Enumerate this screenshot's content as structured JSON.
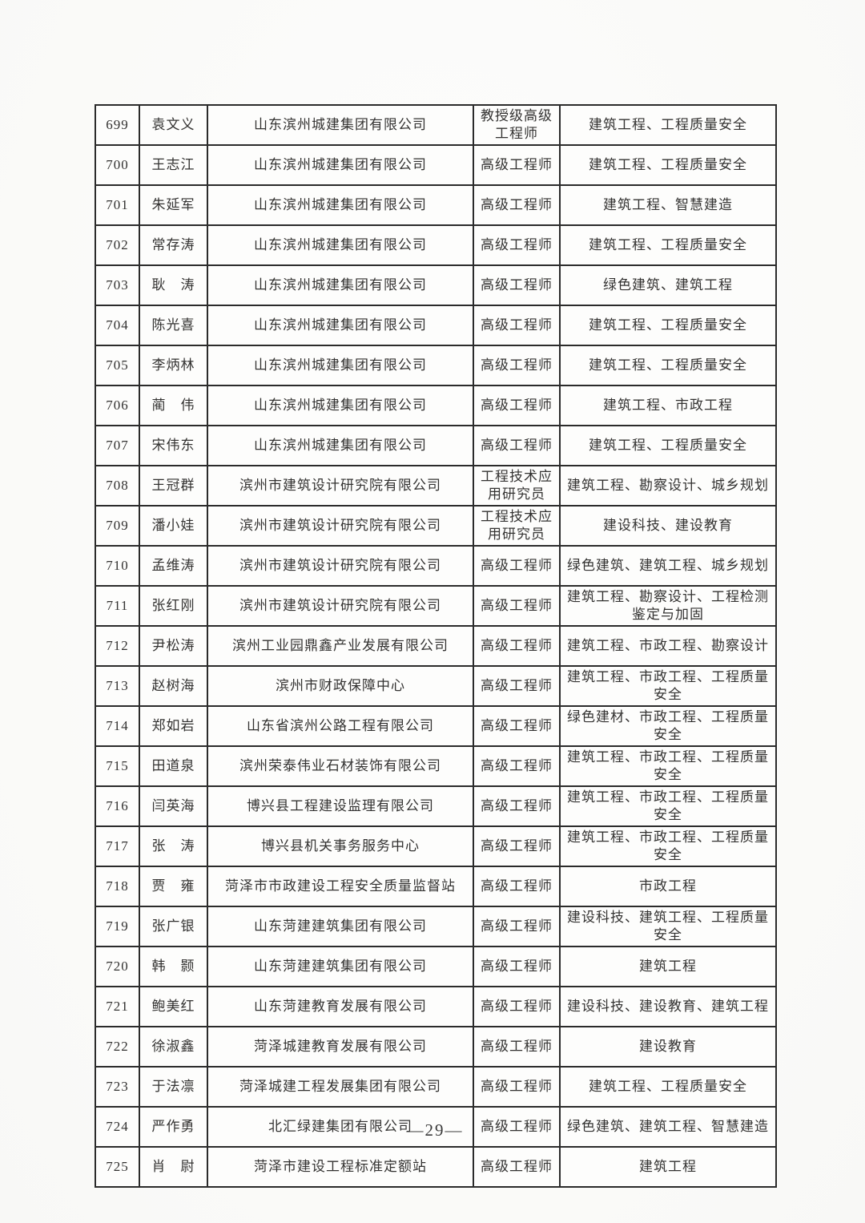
{
  "colors": {
    "background": "#fbfbf9",
    "text": "#333231",
    "border": "#2b2b2b"
  },
  "page": {
    "page_number": "—29—"
  },
  "table": {
    "rows": [
      {
        "no": "699",
        "name": "袁文义",
        "company": "山东滨州城建集团有限公司",
        "title": "教授级高级工程师",
        "specialty": "建筑工程、工程质量安全"
      },
      {
        "no": "700",
        "name": "王志江",
        "company": "山东滨州城建集团有限公司",
        "title": "高级工程师",
        "specialty": "建筑工程、工程质量安全"
      },
      {
        "no": "701",
        "name": "朱延军",
        "company": "山东滨州城建集团有限公司",
        "title": "高级工程师",
        "specialty": "建筑工程、智慧建造"
      },
      {
        "no": "702",
        "name": "常存涛",
        "company": "山东滨州城建集团有限公司",
        "title": "高级工程师",
        "specialty": "建筑工程、工程质量安全"
      },
      {
        "no": "703",
        "name": "耿　涛",
        "company": "山东滨州城建集团有限公司",
        "title": "高级工程师",
        "specialty": "绿色建筑、建筑工程"
      },
      {
        "no": "704",
        "name": "陈光喜",
        "company": "山东滨州城建集团有限公司",
        "title": "高级工程师",
        "specialty": "建筑工程、工程质量安全"
      },
      {
        "no": "705",
        "name": "李炳林",
        "company": "山东滨州城建集团有限公司",
        "title": "高级工程师",
        "specialty": "建筑工程、工程质量安全"
      },
      {
        "no": "706",
        "name": "蔺　伟",
        "company": "山东滨州城建集团有限公司",
        "title": "高级工程师",
        "specialty": "建筑工程、市政工程"
      },
      {
        "no": "707",
        "name": "宋伟东",
        "company": "山东滨州城建集团有限公司",
        "title": "高级工程师",
        "specialty": "建筑工程、工程质量安全"
      },
      {
        "no": "708",
        "name": "王冠群",
        "company": "滨州市建筑设计研究院有限公司",
        "title": "工程技术应用研究员",
        "specialty": "建筑工程、勘察设计、城乡规划"
      },
      {
        "no": "709",
        "name": "潘小娃",
        "company": "滨州市建筑设计研究院有限公司",
        "title": "工程技术应用研究员",
        "specialty": "建设科技、建设教育"
      },
      {
        "no": "710",
        "name": "孟维涛",
        "company": "滨州市建筑设计研究院有限公司",
        "title": "高级工程师",
        "specialty": "绿色建筑、建筑工程、城乡规划"
      },
      {
        "no": "711",
        "name": "张红刚",
        "company": "滨州市建筑设计研究院有限公司",
        "title": "高级工程师",
        "specialty": "建筑工程、勘察设计、工程检测鉴定与加固"
      },
      {
        "no": "712",
        "name": "尹松涛",
        "company": "滨州工业园鼎鑫产业发展有限公司",
        "title": "高级工程师",
        "specialty": "建筑工程、市政工程、勘察设计"
      },
      {
        "no": "713",
        "name": "赵树海",
        "company": "滨州市财政保障中心",
        "title": "高级工程师",
        "specialty": "建筑工程、市政工程、工程质量安全"
      },
      {
        "no": "714",
        "name": "郑如岩",
        "company": "山东省滨州公路工程有限公司",
        "title": "高级工程师",
        "specialty": "绿色建材、市政工程、工程质量安全"
      },
      {
        "no": "715",
        "name": "田道泉",
        "company": "滨州荣泰伟业石材装饰有限公司",
        "title": "高级工程师",
        "specialty": "建筑工程、市政工程、工程质量安全"
      },
      {
        "no": "716",
        "name": "闫英海",
        "company": "博兴县工程建设监理有限公司",
        "title": "高级工程师",
        "specialty": "建筑工程、市政工程、工程质量安全"
      },
      {
        "no": "717",
        "name": "张　涛",
        "company": "博兴县机关事务服务中心",
        "title": "高级工程师",
        "specialty": "建筑工程、市政工程、工程质量安全"
      },
      {
        "no": "718",
        "name": "贾　雍",
        "company": "菏泽市市政建设工程安全质量监督站",
        "title": "高级工程师",
        "specialty": "市政工程"
      },
      {
        "no": "719",
        "name": "张广银",
        "company": "山东菏建建筑集团有限公司",
        "title": "高级工程师",
        "specialty": "建设科技、建筑工程、工程质量安全"
      },
      {
        "no": "720",
        "name": "韩　颢",
        "company": "山东菏建建筑集团有限公司",
        "title": "高级工程师",
        "specialty": "建筑工程"
      },
      {
        "no": "721",
        "name": "鲍美红",
        "company": "山东菏建教育发展有限公司",
        "title": "高级工程师",
        "specialty": "建设科技、建设教育、建筑工程"
      },
      {
        "no": "722",
        "name": "徐淑鑫",
        "company": "菏泽城建教育发展有限公司",
        "title": "高级工程师",
        "specialty": "建设教育"
      },
      {
        "no": "723",
        "name": "于法凛",
        "company": "菏泽城建工程发展集团有限公司",
        "title": "高级工程师",
        "specialty": "建筑工程、工程质量安全"
      },
      {
        "no": "724",
        "name": "严作勇",
        "company": "北汇绿建集团有限公司",
        "title": "高级工程师",
        "specialty": "绿色建筑、建筑工程、智慧建造"
      },
      {
        "no": "725",
        "name": "肖　尉",
        "company": "菏泽市建设工程标准定额站",
        "title": "高级工程师",
        "specialty": "建筑工程"
      }
    ]
  }
}
